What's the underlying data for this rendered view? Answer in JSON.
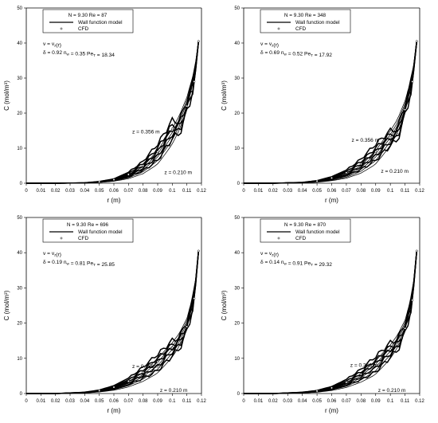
{
  "chart_data": [
    {
      "type": "line",
      "xlabel": "r (m)",
      "ylabel": "C (mol/m³)",
      "xlim": [
        0,
        0.12
      ],
      "ylim": [
        0,
        50
      ],
      "xticks": [
        "0",
        "0.01",
        "0.02",
        "0.03",
        "0.04",
        "0.05",
        "0.06",
        "0.07",
        "0.08",
        "0.09",
        "0.1",
        "0.11",
        "0.12"
      ],
      "yticks": [
        "0",
        "10",
        "20",
        "30",
        "40",
        "50"
      ],
      "legend": {
        "title": "N = 9.30   Re = 87",
        "entries": [
          "Wall function model",
          "CFD"
        ],
        "position": "top-left"
      },
      "annotations": [
        "v = vz(r)",
        "δ = 0.92  nw = 0.35  PeT = 18.34",
        "z = 0.356 m",
        "z = 0.210 m"
      ],
      "series": [
        {
          "name": "Wall function model",
          "x": [
            0,
            0.02,
            0.04,
            0.05,
            0.06,
            0.07,
            0.08,
            0.09,
            0.1,
            0.105,
            0.11,
            0.115,
            0.118
          ],
          "values": [
            0,
            0,
            0.1,
            0.3,
            0.8,
            1.8,
            3.8,
            7.5,
            13.5,
            17.5,
            23,
            31,
            40.5
          ]
        },
        {
          "name": "CFD",
          "x": [
            0,
            0.02,
            0.04,
            0.05,
            0.06,
            0.07,
            0.08,
            0.09,
            0.1,
            0.105,
            0.11,
            0.115,
            0.118
          ],
          "values": [
            0,
            0,
            0.1,
            0.4,
            1,
            2.5,
            5,
            9,
            15.5,
            16,
            22,
            29,
            40.5
          ]
        }
      ]
    },
    {
      "type": "line",
      "xlabel": "r (m)",
      "ylabel": "C (mol/m³)",
      "xlim": [
        0,
        0.12
      ],
      "ylim": [
        0,
        50
      ],
      "xticks": [
        "0",
        "0.01",
        "0.02",
        "0.03",
        "0.04",
        "0.05",
        "0.06",
        "0.07",
        "0.08",
        "0.09",
        "0.1",
        "0.11",
        "0.12"
      ],
      "yticks": [
        "0",
        "10",
        "20",
        "30",
        "40",
        "50"
      ],
      "legend": {
        "title": "N = 9.30   Re = 348",
        "entries": [
          "Wall function model",
          "CFD"
        ],
        "position": "top-left"
      },
      "annotations": [
        "v = vz(r)",
        "δ = 0.69  nw = 0.52  PeT = 17.92",
        "z = 0.356 m",
        "z = 0.210 m"
      ],
      "series": [
        {
          "name": "Wall function model",
          "x": [
            0,
            0.02,
            0.04,
            0.05,
            0.06,
            0.07,
            0.08,
            0.09,
            0.1,
            0.105,
            0.11,
            0.115,
            0.118
          ],
          "values": [
            0,
            0,
            0.1,
            0.4,
            1,
            2,
            4,
            7.5,
            13,
            16.5,
            22,
            30,
            40.5
          ]
        },
        {
          "name": "CFD",
          "x": [
            0,
            0.02,
            0.04,
            0.05,
            0.06,
            0.07,
            0.08,
            0.09,
            0.1,
            0.105,
            0.11,
            0.115,
            0.118
          ],
          "values": [
            0,
            0,
            0.2,
            0.6,
            1.5,
            3,
            5.5,
            9,
            13,
            14,
            21,
            29,
            40.5
          ]
        }
      ]
    },
    {
      "type": "line",
      "xlabel": "r (m)",
      "ylabel": "C (mol/m³)",
      "xlim": [
        0,
        0.12
      ],
      "ylim": [
        0,
        50
      ],
      "xticks": [
        "0",
        "0.01",
        "0.02",
        "0.03",
        "0.04",
        "0.05",
        "0.06",
        "0.07",
        "0.08",
        "0.09",
        "0.1",
        "0.11",
        "0.12"
      ],
      "yticks": [
        "0",
        "10",
        "20",
        "30",
        "40",
        "50"
      ],
      "legend": {
        "title": "N = 9.30   Re = 696",
        "entries": [
          "Wall function model",
          "CFD"
        ],
        "position": "top-left"
      },
      "annotations": [
        "v = vz(r)",
        "δ = 0.19  nw = 0.81  PeT = 25.85",
        "z = 0.356 m",
        "z = 0.210 m"
      ],
      "series": [
        {
          "name": "Wall function model",
          "x": [
            0,
            0.02,
            0.04,
            0.05,
            0.06,
            0.07,
            0.08,
            0.09,
            0.1,
            0.105,
            0.11,
            0.115,
            0.118
          ],
          "values": [
            0,
            0,
            0.2,
            0.6,
            1.3,
            2.6,
            4.8,
            8,
            12.5,
            15.5,
            20,
            28,
            40.5
          ]
        },
        {
          "name": "CFD",
          "x": [
            0,
            0.02,
            0.04,
            0.05,
            0.06,
            0.07,
            0.08,
            0.09,
            0.1,
            0.105,
            0.11,
            0.115,
            0.118
          ],
          "values": [
            0,
            0,
            0.3,
            0.8,
            1.8,
            3.5,
            6,
            9,
            13,
            14.5,
            19,
            27,
            40.5
          ]
        }
      ]
    },
    {
      "type": "line",
      "xlabel": "r (m)",
      "ylabel": "C (mol/m³)",
      "xlim": [
        0,
        0.12
      ],
      "ylim": [
        0,
        50
      ],
      "xticks": [
        "0",
        "0.01",
        "0.02",
        "0.03",
        "0.04",
        "0.05",
        "0.06",
        "0.07",
        "0.08",
        "0.09",
        "0.1",
        "0.11",
        "0.12"
      ],
      "yticks": [
        "0",
        "10",
        "20",
        "30",
        "40",
        "50"
      ],
      "legend": {
        "title": "N = 9.30   Re = 870",
        "entries": [
          "Wall function model",
          "CFD"
        ],
        "position": "top-left"
      },
      "annotations": [
        "v = vz(r)",
        "δ = 0.14  nw = 0.91  PeT = 29.32",
        "z = 0.356 m",
        "z = 0.210 m"
      ],
      "series": [
        {
          "name": "Wall function model",
          "x": [
            0,
            0.02,
            0.04,
            0.05,
            0.06,
            0.07,
            0.08,
            0.09,
            0.1,
            0.105,
            0.11,
            0.115,
            0.118
          ],
          "values": [
            0,
            0,
            0.2,
            0.5,
            1.2,
            2.4,
            4.5,
            7.5,
            12,
            15,
            19.5,
            27.5,
            40.5
          ]
        },
        {
          "name": "CFD",
          "x": [
            0,
            0.02,
            0.04,
            0.05,
            0.06,
            0.07,
            0.08,
            0.09,
            0.1,
            0.105,
            0.11,
            0.115,
            0.118
          ],
          "values": [
            0,
            0,
            0.3,
            0.7,
            1.6,
            3.2,
            5.5,
            8.5,
            12.5,
            14,
            18.5,
            26.5,
            40.5
          ]
        }
      ]
    }
  ]
}
